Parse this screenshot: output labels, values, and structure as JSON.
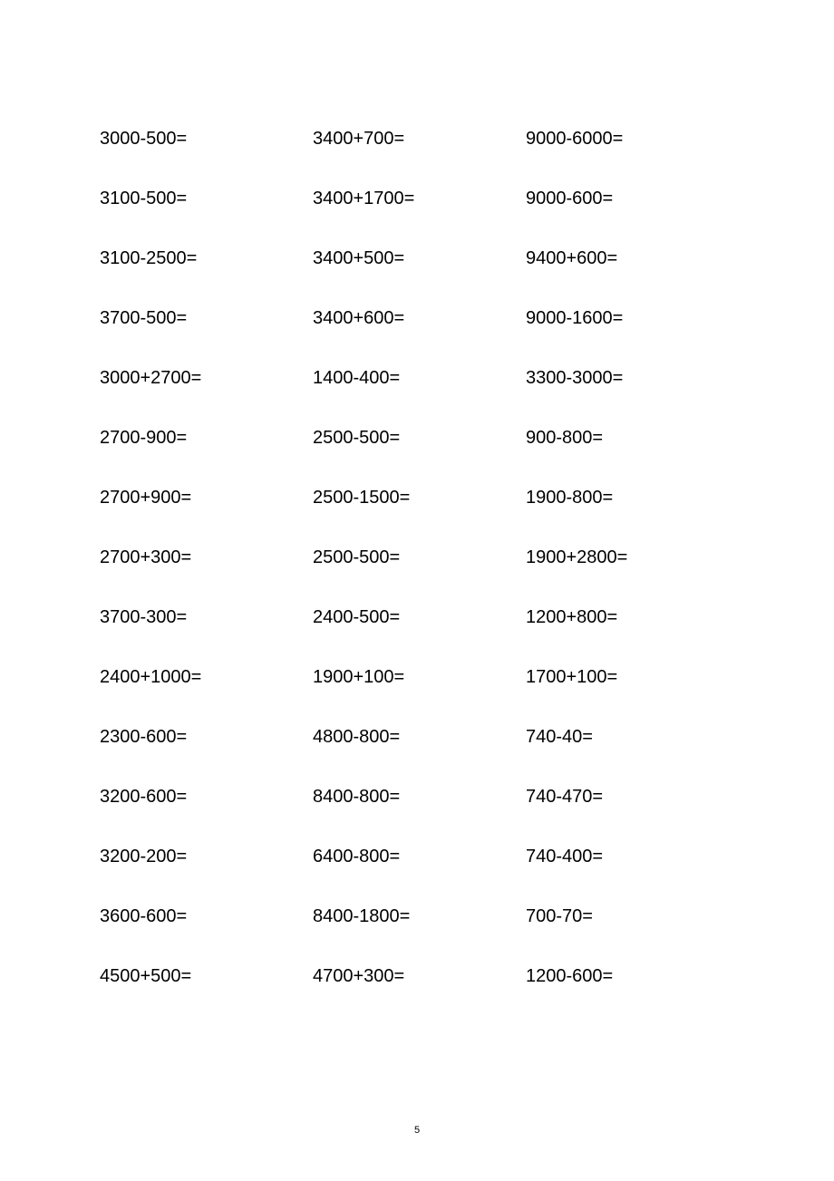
{
  "worksheet": {
    "text_color": "#000000",
    "background_color": "#ffffff",
    "font_size": 20,
    "rows": [
      {
        "col1": "3000-500=",
        "col2": "3400+700=",
        "col3": "9000-6000="
      },
      {
        "col1": "3100-500=",
        "col2": "3400+1700=",
        "col3": "9000-600="
      },
      {
        "col1": "3100-2500=",
        "col2": "3400+500=",
        "col3": "9400+600="
      },
      {
        "col1": "3700-500=",
        "col2": "3400+600=",
        "col3": "9000-1600="
      },
      {
        "col1": "3000+2700=",
        "col2": "1400-400=",
        "col3": "3300-3000="
      },
      {
        "col1": "2700-900=",
        "col2": "2500-500=",
        "col3": "900-800="
      },
      {
        "col1": "2700+900=",
        "col2": "2500-1500=",
        "col3": "1900-800="
      },
      {
        "col1": "2700+300=",
        "col2": "2500-500=",
        "col3": "1900+2800="
      },
      {
        "col1": "3700-300=",
        "col2": "2400-500=",
        "col3": "1200+800="
      },
      {
        "col1": "2400+1000=",
        "col2": "1900+100=",
        "col3": "1700+100="
      },
      {
        "col1": "2300-600=",
        "col2": "4800-800=",
        "col3": "740-40="
      },
      {
        "col1": "3200-600=",
        "col2": "8400-800=",
        "col3": "740-470="
      },
      {
        "col1": "3200-200=",
        "col2": "6400-800=",
        "col3": "740-400="
      },
      {
        "col1": "3600-600=",
        "col2": "8400-1800=",
        "col3": "700-70="
      },
      {
        "col1": "4500+500=",
        "col2": "4700+300=",
        "col3": "1200-600="
      }
    ]
  },
  "page_number": "5"
}
